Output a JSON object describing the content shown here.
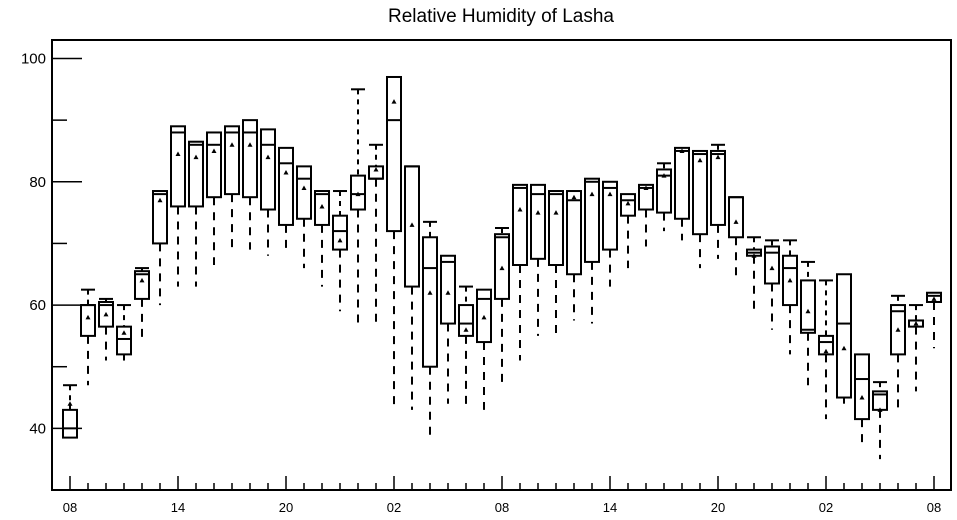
{
  "chart_data": {
    "type": "box",
    "title": "Relative Humidity of Lasha",
    "xlabel": "",
    "ylabel": "",
    "ylim": [
      30,
      103
    ],
    "yticks": [
      40,
      60,
      80,
      100
    ],
    "x_tick_labels": [
      "08",
      "14",
      "20",
      "02",
      "08",
      "14",
      "20",
      "02",
      "08"
    ],
    "x_tick_positions": [
      0,
      6,
      12,
      18,
      24,
      30,
      36,
      42,
      48
    ],
    "grid": false,
    "boxes": [
      {
        "x": 0,
        "min": 38.5,
        "q1": 38.5,
        "median": 40.0,
        "q3": 43.0,
        "max": 47.0,
        "mean": 44.0
      },
      {
        "x": 1,
        "min": 47.0,
        "q1": 55.0,
        "median": 60.0,
        "q3": 60.0,
        "max": 62.5,
        "mean": 58.0
      },
      {
        "x": 2,
        "min": 51.0,
        "q1": 56.5,
        "median": 60.0,
        "q3": 60.5,
        "max": 61.0,
        "mean": 58.5
      },
      {
        "x": 3,
        "min": 51.0,
        "q1": 52.0,
        "median": 54.5,
        "q3": 56.5,
        "max": 60.0,
        "mean": 55.5
      },
      {
        "x": 4,
        "min": 54.5,
        "q1": 61.0,
        "median": 65.0,
        "q3": 65.5,
        "max": 66.0,
        "mean": 64.0
      },
      {
        "x": 5,
        "min": 60.0,
        "q1": 70.0,
        "median": 78.0,
        "q3": 78.5,
        "max": 78.5,
        "mean": 77.0
      },
      {
        "x": 6,
        "min": 63.0,
        "q1": 76.0,
        "median": 88.0,
        "q3": 89.0,
        "max": 89.0,
        "mean": 84.5
      },
      {
        "x": 7,
        "min": 63.0,
        "q1": 76.0,
        "median": 86.0,
        "q3": 86.5,
        "max": 86.5,
        "mean": 84.0
      },
      {
        "x": 8,
        "min": 66.5,
        "q1": 77.5,
        "median": 86.0,
        "q3": 88.0,
        "max": 88.0,
        "mean": 85.0
      },
      {
        "x": 9,
        "min": 69.0,
        "q1": 78.0,
        "median": 88.0,
        "q3": 89.0,
        "max": 89.0,
        "mean": 86.0
      },
      {
        "x": 10,
        "min": 69.0,
        "q1": 77.5,
        "median": 88.0,
        "q3": 90.0,
        "max": 90.0,
        "mean": 86.0
      },
      {
        "x": 11,
        "min": 68.0,
        "q1": 75.5,
        "median": 86.0,
        "q3": 88.5,
        "max": 88.5,
        "mean": 84.0
      },
      {
        "x": 12,
        "min": 69.0,
        "q1": 73.0,
        "median": 83.0,
        "q3": 85.5,
        "max": 85.5,
        "mean": 81.5
      },
      {
        "x": 13,
        "min": 66.0,
        "q1": 74.0,
        "median": 80.5,
        "q3": 82.5,
        "max": 82.5,
        "mean": 79.0
      },
      {
        "x": 14,
        "min": 63.0,
        "q1": 73.0,
        "median": 78.0,
        "q3": 78.5,
        "max": 78.5,
        "mean": 76.0
      },
      {
        "x": 15,
        "min": 59.0,
        "q1": 69.0,
        "median": 72.0,
        "q3": 74.5,
        "max": 78.5,
        "mean": 70.5
      },
      {
        "x": 16,
        "min": 56.5,
        "q1": 75.5,
        "median": 78.0,
        "q3": 81.0,
        "max": 95.0,
        "mean": 78.0
      },
      {
        "x": 17,
        "min": 56.5,
        "q1": 80.5,
        "median": 80.5,
        "q3": 82.5,
        "max": 86.0,
        "mean": 82.0
      },
      {
        "x": 18,
        "min": 43.0,
        "q1": 72.0,
        "median": 90.0,
        "q3": 97.0,
        "max": 97.0,
        "mean": 93.0
      },
      {
        "x": 19,
        "min": 43.0,
        "q1": 63.0,
        "median": 82.5,
        "q3": 82.5,
        "max": 82.5,
        "mean": 73.0
      },
      {
        "x": 20,
        "min": 38.5,
        "q1": 50.0,
        "median": 66.0,
        "q3": 71.0,
        "max": 73.5,
        "mean": 62.0
      },
      {
        "x": 21,
        "min": 44.0,
        "q1": 57.0,
        "median": 67.0,
        "q3": 68.0,
        "max": 68.0,
        "mean": 62.0
      },
      {
        "x": 22,
        "min": 43.0,
        "q1": 55.0,
        "median": 57.0,
        "q3": 60.0,
        "max": 63.0,
        "mean": 56.0
      },
      {
        "x": 23,
        "min": 43.0,
        "q1": 54.0,
        "median": 61.0,
        "q3": 62.5,
        "max": 62.5,
        "mean": 58.0
      },
      {
        "x": 24,
        "min": 47.5,
        "q1": 61.0,
        "median": 71.0,
        "q3": 71.5,
        "max": 72.5,
        "mean": 66.0
      },
      {
        "x": 25,
        "min": 51.0,
        "q1": 66.5,
        "median": 79.0,
        "q3": 79.5,
        "max": 79.5,
        "mean": 75.5
      },
      {
        "x": 26,
        "min": 55.0,
        "q1": 67.5,
        "median": 78.0,
        "q3": 79.5,
        "max": 79.5,
        "mean": 75.0
      },
      {
        "x": 27,
        "min": 55.0,
        "q1": 66.5,
        "median": 78.0,
        "q3": 78.5,
        "max": 78.5,
        "mean": 75.0
      },
      {
        "x": 28,
        "min": 57.5,
        "q1": 65.0,
        "median": 77.0,
        "q3": 78.5,
        "max": 78.5,
        "mean": 77.5
      },
      {
        "x": 29,
        "min": 57.0,
        "q1": 67.0,
        "median": 80.0,
        "q3": 80.5,
        "max": 80.5,
        "mean": 78.0
      },
      {
        "x": 30,
        "min": 63.0,
        "q1": 69.0,
        "median": 79.0,
        "q3": 80.0,
        "max": 80.0,
        "mean": 78.0
      },
      {
        "x": 31,
        "min": 66.0,
        "q1": 74.5,
        "median": 77.0,
        "q3": 78.0,
        "max": 78.0,
        "mean": 76.5
      },
      {
        "x": 32,
        "min": 69.5,
        "q1": 75.5,
        "median": 79.0,
        "q3": 79.5,
        "max": 79.5,
        "mean": 79.0
      },
      {
        "x": 33,
        "min": 72.0,
        "q1": 75.0,
        "median": 81.0,
        "q3": 82.0,
        "max": 83.0,
        "mean": 81.0
      },
      {
        "x": 34,
        "min": 70.5,
        "q1": 74.0,
        "median": 85.0,
        "q3": 85.5,
        "max": 85.5,
        "mean": 85.0
      },
      {
        "x": 35,
        "min": 66.0,
        "q1": 71.5,
        "median": 84.5,
        "q3": 85.0,
        "max": 85.0,
        "mean": 83.5
      },
      {
        "x": 36,
        "min": 67.5,
        "q1": 73.0,
        "median": 84.5,
        "q3": 85.0,
        "max": 86.0,
        "mean": 84.0
      },
      {
        "x": 37,
        "min": 64.5,
        "q1": 71.0,
        "median": 77.5,
        "q3": 77.5,
        "max": 77.5,
        "mean": 73.5
      },
      {
        "x": 38,
        "min": 59.0,
        "q1": 68.0,
        "median": 68.5,
        "q3": 69.0,
        "max": 71.0,
        "mean": 68.0
      },
      {
        "x": 39,
        "min": 56.0,
        "q1": 63.5,
        "median": 68.5,
        "q3": 69.5,
        "max": 70.5,
        "mean": 66.0
      },
      {
        "x": 40,
        "min": 52.0,
        "q1": 60.0,
        "median": 66.0,
        "q3": 68.0,
        "max": 70.5,
        "mean": 64.0
      },
      {
        "x": 41,
        "min": 47.0,
        "q1": 55.5,
        "median": 56.0,
        "q3": 64.0,
        "max": 67.0,
        "mean": 59.0
      },
      {
        "x": 42,
        "min": 41.5,
        "q1": 52.0,
        "median": 54.0,
        "q3": 55.0,
        "max": 64.0,
        "mean": 52.5
      },
      {
        "x": 43,
        "min": 44.0,
        "q1": 45.0,
        "median": 57.0,
        "q3": 65.0,
        "max": 65.0,
        "mean": 53.0
      },
      {
        "x": 44,
        "min": 37.5,
        "q1": 41.5,
        "median": 48.0,
        "q3": 52.0,
        "max": 52.0,
        "mean": 45.0
      },
      {
        "x": 45,
        "min": 35.0,
        "q1": 43.0,
        "median": 45.5,
        "q3": 46.0,
        "max": 47.5,
        "mean": 43.0
      },
      {
        "x": 46,
        "min": 42.5,
        "q1": 52.0,
        "median": 59.0,
        "q3": 60.0,
        "max": 61.5,
        "mean": 56.0
      },
      {
        "x": 47,
        "min": 46.0,
        "q1": 56.5,
        "median": 57.5,
        "q3": 57.5,
        "max": 60.0,
        "mean": 57.0
      },
      {
        "x": 48,
        "min": 53.0,
        "q1": 60.5,
        "median": 61.5,
        "q3": 62.0,
        "max": 62.0,
        "mean": 61.0
      }
    ]
  }
}
